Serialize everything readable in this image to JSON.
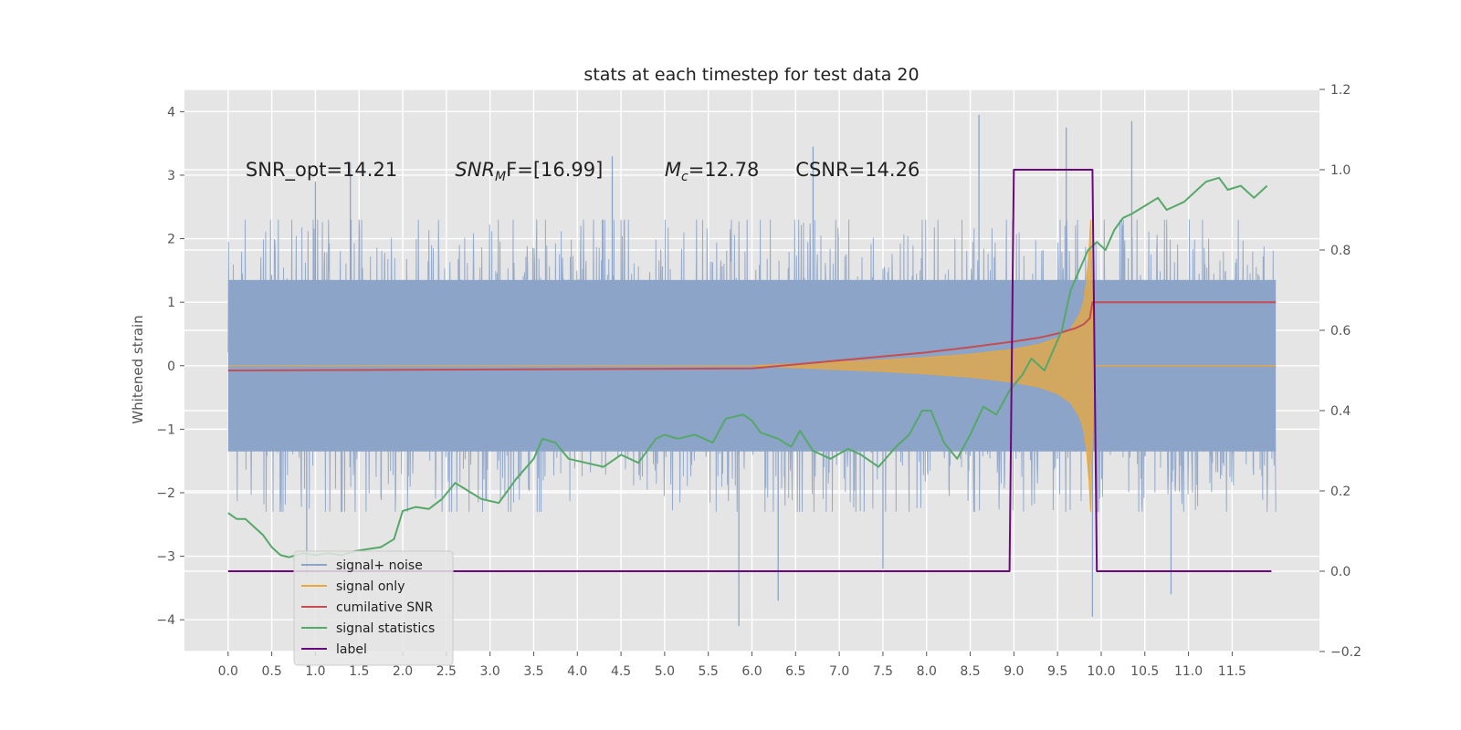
{
  "chart_data": {
    "type": "line",
    "title": "stats at each timestep for test data 20",
    "ylabel": "Whitened strain",
    "xlim": [
      -0.5,
      12.5
    ],
    "ylim": [
      -4.5,
      4.35
    ],
    "y2lim": [
      -0.2,
      1.2
    ],
    "grid": true,
    "legend_position": "lower-left",
    "x_ticks": [
      "0.0",
      "0.5",
      "1.0",
      "1.5",
      "2.0",
      "2.5",
      "3.0",
      "3.5",
      "4.0",
      "4.5",
      "5.0",
      "5.5",
      "6.0",
      "6.5",
      "7.0",
      "7.5",
      "8.0",
      "8.5",
      "9.0",
      "9.5",
      "10.0",
      "10.5",
      "11.0",
      "11.5"
    ],
    "y_ticks": [
      "4",
      "3",
      "2",
      "1",
      "0",
      "−1",
      "−2",
      "−3",
      "−4"
    ],
    "y2_ticks": [
      "1.2",
      "1.0",
      "0.8",
      "0.6",
      "0.4",
      "0.2",
      "0.0",
      "−0.2"
    ],
    "annotations": [
      {
        "id": "snr-opt",
        "x": 0.2,
        "y": 3.1,
        "text": "SNR_opt=14.21"
      },
      {
        "id": "snr-mf",
        "x": 2.6,
        "y": 3.1,
        "main": "SNR",
        "sub": "M",
        "rest": "F=[16.99]"
      },
      {
        "id": "chirp-mass",
        "x": 5.0,
        "y": 3.1,
        "main": "M",
        "sub": "c",
        "rest": "=12.78"
      },
      {
        "id": "csnr",
        "x": 6.5,
        "y": 3.1,
        "text": "CSNR=14.26"
      }
    ],
    "series": [
      {
        "name": "signal+ noise",
        "axis": "left",
        "color": "#8da4c9",
        "x_range": [
          0.0,
          12.0
        ],
        "envelope_upper": 1.9,
        "envelope_lower": -1.9,
        "peaks": [
          {
            "x": 1.0,
            "y": 2.9
          },
          {
            "x": 1.4,
            "y": 3.2
          },
          {
            "x": 4.4,
            "y": 3.3
          },
          {
            "x": 6.7,
            "y": 3.45
          },
          {
            "x": 8.6,
            "y": 3.95
          },
          {
            "x": 9.6,
            "y": 3.75
          },
          {
            "x": 10.35,
            "y": 3.85
          },
          {
            "x": 5.85,
            "y": -4.1
          },
          {
            "x": 6.3,
            "y": -3.7
          },
          {
            "x": 9.9,
            "y": -3.95
          },
          {
            "x": 10.8,
            "y": -3.6
          },
          {
            "x": 0.9,
            "y": -3.3
          },
          {
            "x": 7.5,
            "y": -3.2
          }
        ]
      },
      {
        "name": "signal only",
        "axis": "left",
        "color": "#e9a83c",
        "points": [
          [
            0,
            0
          ],
          [
            6,
            0
          ],
          [
            6.5,
            0.03
          ],
          [
            7,
            0.06
          ],
          [
            7.5,
            0.09
          ],
          [
            8,
            0.13
          ],
          [
            8.5,
            0.18
          ],
          [
            9,
            0.26
          ],
          [
            9.3,
            0.34
          ],
          [
            9.5,
            0.44
          ],
          [
            9.65,
            0.58
          ],
          [
            9.75,
            0.8
          ],
          [
            9.8,
            1.0
          ],
          [
            9.83,
            1.3
          ],
          [
            9.86,
            1.8
          ],
          [
            9.88,
            2.3
          ],
          [
            9.9,
            1.0
          ],
          [
            9.92,
            0
          ],
          [
            12,
            0
          ]
        ],
        "fill_between_mirror": true
      },
      {
        "name": "cumilative SNR",
        "axis": "right",
        "color": "#c44e52",
        "points": [
          [
            0,
            0.5
          ],
          [
            6,
            0.505
          ],
          [
            6.5,
            0.515
          ],
          [
            7,
            0.525
          ],
          [
            7.5,
            0.535
          ],
          [
            8,
            0.545
          ],
          [
            8.5,
            0.558
          ],
          [
            9,
            0.572
          ],
          [
            9.3,
            0.582
          ],
          [
            9.5,
            0.592
          ],
          [
            9.7,
            0.605
          ],
          [
            9.8,
            0.615
          ],
          [
            9.87,
            0.63
          ],
          [
            9.9,
            0.67
          ],
          [
            12,
            0.67
          ]
        ]
      },
      {
        "name": "signal statistics",
        "axis": "right",
        "color": "#55a868",
        "points": [
          [
            0,
            0.145
          ],
          [
            0.1,
            0.13
          ],
          [
            0.2,
            0.13
          ],
          [
            0.3,
            0.11
          ],
          [
            0.4,
            0.09
          ],
          [
            0.5,
            0.06
          ],
          [
            0.6,
            0.04
          ],
          [
            0.7,
            0.035
          ],
          [
            0.85,
            0.045
          ],
          [
            1.0,
            0.04
          ],
          [
            1.15,
            0.045
          ],
          [
            1.3,
            0.04
          ],
          [
            1.45,
            0.05
          ],
          [
            1.6,
            0.055
          ],
          [
            1.75,
            0.06
          ],
          [
            1.9,
            0.08
          ],
          [
            2.0,
            0.15
          ],
          [
            2.15,
            0.16
          ],
          [
            2.3,
            0.155
          ],
          [
            2.45,
            0.18
          ],
          [
            2.6,
            0.22
          ],
          [
            2.75,
            0.2
          ],
          [
            2.9,
            0.18
          ],
          [
            3.1,
            0.17
          ],
          [
            3.3,
            0.23
          ],
          [
            3.5,
            0.28
          ],
          [
            3.6,
            0.33
          ],
          [
            3.75,
            0.32
          ],
          [
            3.9,
            0.28
          ],
          [
            4.1,
            0.27
          ],
          [
            4.3,
            0.26
          ],
          [
            4.5,
            0.29
          ],
          [
            4.7,
            0.27
          ],
          [
            4.9,
            0.33
          ],
          [
            5.0,
            0.34
          ],
          [
            5.15,
            0.33
          ],
          [
            5.35,
            0.34
          ],
          [
            5.55,
            0.32
          ],
          [
            5.7,
            0.38
          ],
          [
            5.9,
            0.39
          ],
          [
            6.0,
            0.375
          ],
          [
            6.1,
            0.345
          ],
          [
            6.3,
            0.33
          ],
          [
            6.45,
            0.31
          ],
          [
            6.55,
            0.35
          ],
          [
            6.7,
            0.3
          ],
          [
            6.9,
            0.28
          ],
          [
            7.1,
            0.305
          ],
          [
            7.25,
            0.29
          ],
          [
            7.45,
            0.26
          ],
          [
            7.65,
            0.31
          ],
          [
            7.8,
            0.34
          ],
          [
            7.95,
            0.4
          ],
          [
            8.05,
            0.4
          ],
          [
            8.2,
            0.32
          ],
          [
            8.35,
            0.28
          ],
          [
            8.5,
            0.34
          ],
          [
            8.65,
            0.41
          ],
          [
            8.8,
            0.39
          ],
          [
            8.95,
            0.45
          ],
          [
            9.1,
            0.49
          ],
          [
            9.2,
            0.53
          ],
          [
            9.35,
            0.5
          ],
          [
            9.45,
            0.55
          ],
          [
            9.55,
            0.6
          ],
          [
            9.65,
            0.7
          ],
          [
            9.75,
            0.75
          ],
          [
            9.85,
            0.8
          ],
          [
            9.95,
            0.82
          ],
          [
            10.05,
            0.8
          ],
          [
            10.15,
            0.85
          ],
          [
            10.25,
            0.88
          ],
          [
            10.35,
            0.89
          ],
          [
            10.5,
            0.91
          ],
          [
            10.65,
            0.93
          ],
          [
            10.75,
            0.9
          ],
          [
            10.85,
            0.91
          ],
          [
            10.95,
            0.92
          ],
          [
            11.1,
            0.95
          ],
          [
            11.2,
            0.97
          ],
          [
            11.35,
            0.98
          ],
          [
            11.45,
            0.95
          ],
          [
            11.6,
            0.96
          ],
          [
            11.75,
            0.93
          ],
          [
            11.9,
            0.96
          ]
        ]
      },
      {
        "name": "label",
        "axis": "right",
        "color": "#6a0a7a",
        "points": [
          [
            0,
            0.0
          ],
          [
            8.95,
            0.0
          ],
          [
            9.0,
            1.0
          ],
          [
            9.9,
            1.0
          ],
          [
            9.95,
            0.0
          ],
          [
            11.95,
            0.0
          ]
        ]
      }
    ]
  }
}
